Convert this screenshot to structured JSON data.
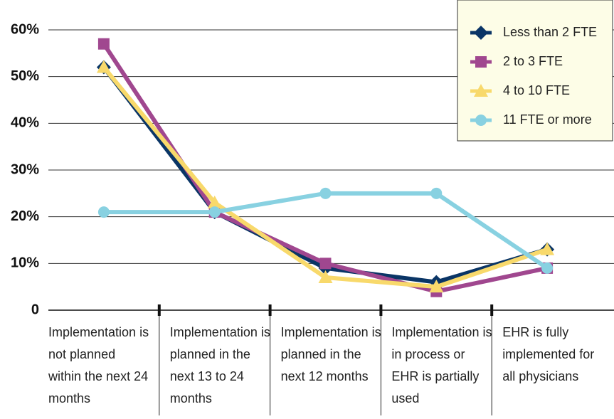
{
  "chart_data": {
    "type": "line",
    "categories": [
      "Implementation is not planned within the next 24 months",
      "Implementation is planned in the next 13 to 24 months",
      "Implementation is planned in the next 12 months",
      "Implementation is in process or EHR is partially used",
      "EHR is fully implemented for all physicians"
    ],
    "series": [
      {
        "name": "Less than 2 FTE",
        "color": "#0a3566",
        "marker": "diamond",
        "values": [
          52,
          21,
          9,
          6,
          13
        ]
      },
      {
        "name": "2 to 3 FTE",
        "color": "#a0478f",
        "marker": "square",
        "values": [
          57,
          21,
          10,
          4,
          9
        ]
      },
      {
        "name": "4 to 10 FTE",
        "color": "#f8d96b",
        "marker": "triangle",
        "values": [
          52,
          23,
          7,
          5,
          13
        ]
      },
      {
        "name": "11 FTE or more",
        "color": "#88d1e1",
        "marker": "circle",
        "values": [
          21,
          21,
          25,
          25,
          9
        ]
      }
    ],
    "ylim": [
      0,
      60
    ],
    "yticks": [
      0,
      {
        "value": 10,
        "label": "10%"
      },
      {
        "value": 20,
        "label": "20%"
      },
      {
        "value": 30,
        "label": "30%"
      },
      {
        "value": 40,
        "label": "40%"
      },
      {
        "value": 50,
        "label": "50%"
      },
      {
        "value": 60,
        "label": "60%"
      }
    ],
    "grid": true,
    "legend": "top-right"
  }
}
